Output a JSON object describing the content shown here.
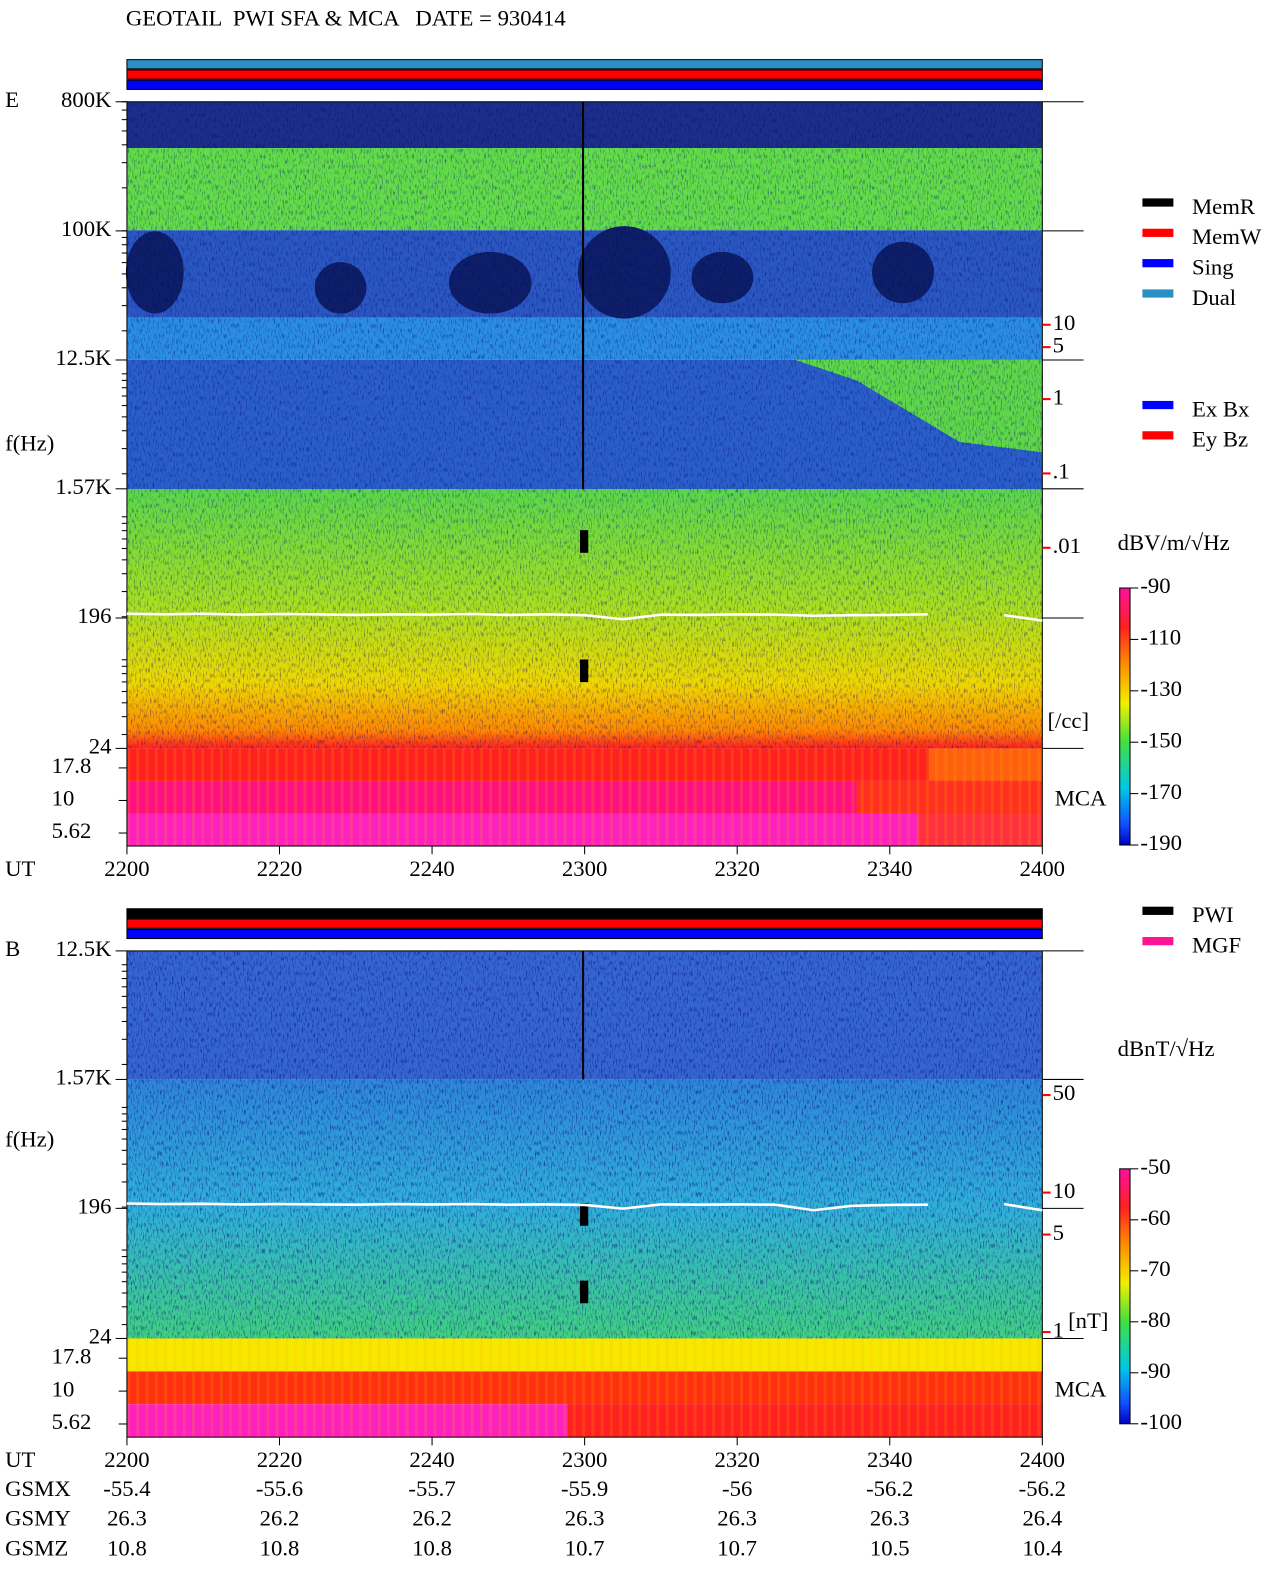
{
  "title": "GEOTAIL  PWI SFA & MCA   DATE = 930414",
  "chart_data": [
    {
      "type": "spectrogram",
      "panel_label": "E",
      "y_label": "f(Hz)",
      "x_label": "UT",
      "xlim": [
        1320,
        1440
      ],
      "xticks": [
        {
          "value": 1320,
          "label": "2200"
        },
        {
          "value": 1340,
          "label": "2220"
        },
        {
          "value": 1360,
          "label": "2240"
        },
        {
          "value": 1380,
          "label": "2300"
        },
        {
          "value": 1400,
          "label": "2320"
        },
        {
          "value": 1420,
          "label": "2340"
        },
        {
          "value": 1440,
          "label": "2400"
        }
      ],
      "log_y": true,
      "ylim": [
        24,
        800000
      ],
      "yticks": [
        {
          "value": 800000,
          "label": "800K"
        },
        {
          "value": 100000,
          "label": "100K"
        },
        {
          "value": 12500,
          "label": "12.5K"
        },
        {
          "value": 1570,
          "label": "1.57K"
        },
        196,
        24
      ],
      "mca_channels": [
        17.8,
        10,
        5.62
      ],
      "mca_label": "MCA",
      "y2_label": "[/cc]",
      "y2_color": "#ff0000",
      "y2lim": [
        2e-05,
        10000
      ],
      "y2ticks": [
        10,
        5,
        1,
        {
          "value": 0.1,
          "label": ".1"
        },
        {
          "value": 0.01,
          "label": ".01"
        }
      ],
      "colorbar": {
        "label": "dBV/m/√Hz",
        "lim": [
          -90,
          -190
        ],
        "ticks": [
          -90,
          -110,
          -130,
          -150,
          -170,
          -190
        ]
      },
      "legends": [
        [
          {
            "name": "MemR",
            "color": "#000000"
          },
          {
            "name": "MemW",
            "color": "#ff0000"
          },
          {
            "name": "Sing",
            "color": "#0000ff"
          },
          {
            "name": "Dual",
            "color": "#2a8fc4"
          }
        ],
        [
          {
            "name": "Ex Bx",
            "color": "#0000ff"
          },
          {
            "name": "Ey Bz",
            "color": "#ff0000"
          }
        ]
      ],
      "series": [
        {
          "color": "#ffffff",
          "x": [
            1320,
            1325,
            1330,
            1335,
            1340,
            1345,
            1350,
            1355,
            1360,
            1365,
            1370,
            1375,
            1380,
            1385,
            1390,
            1395,
            1400,
            1405,
            1410,
            1415,
            1420,
            1425,
            1430,
            1435,
            1440
          ],
          "values": [
            210,
            208,
            210,
            207,
            209,
            208,
            206,
            208,
            207,
            209,
            206,
            208,
            205,
            192,
            207,
            206,
            208,
            207,
            203,
            205,
            206,
            208,
            null,
            205,
            188
          ]
        }
      ]
    },
    {
      "type": "spectrogram",
      "panel_label": "B",
      "y_label": "f(Hz)",
      "x_label": "UT",
      "xlim": [
        1320,
        1440
      ],
      "xticks": [
        {
          "value": 1320,
          "label": "2200"
        },
        {
          "value": 1340,
          "label": "2220"
        },
        {
          "value": 1360,
          "label": "2240"
        },
        {
          "value": 1380,
          "label": "2300"
        },
        {
          "value": 1400,
          "label": "2320"
        },
        {
          "value": 1420,
          "label": "2340"
        },
        {
          "value": 1440,
          "label": "2400"
        }
      ],
      "log_y": true,
      "ylim": [
        24,
        12500
      ],
      "yticks": [
        {
          "value": 12500,
          "label": "12.5K"
        },
        {
          "value": 1570,
          "label": "1.57K"
        },
        196,
        24
      ],
      "mca_channels": [
        17.8,
        10,
        5.62
      ],
      "mca_label": "MCA",
      "y2_label": "[nT]",
      "y2_color": "#ff0000",
      "y2lim": [
        0.9,
        540
      ],
      "y2ticks": [
        50,
        10,
        5,
        1
      ],
      "colorbar": {
        "label": "dBnT/√Hz",
        "lim": [
          -50,
          -100
        ],
        "ticks": [
          -50,
          -60,
          -70,
          -80,
          -90,
          -100
        ]
      },
      "legends": [
        [
          {
            "name": "PWI",
            "color": "#000000"
          },
          {
            "name": "MGF",
            "color": "#ff1493"
          }
        ]
      ],
      "series": [
        {
          "color": "#ffffff",
          "x": [
            1320,
            1325,
            1330,
            1335,
            1340,
            1345,
            1350,
            1355,
            1360,
            1365,
            1370,
            1375,
            1380,
            1385,
            1390,
            1395,
            1400,
            1405,
            1410,
            1415,
            1420,
            1425,
            1430,
            1435,
            1440
          ],
          "values": [
            212,
            210,
            211,
            209,
            210,
            209,
            208,
            210,
            209,
            210,
            208,
            209,
            207,
            195,
            209,
            208,
            209,
            208,
            190,
            204,
            207,
            208,
            null,
            210,
            190
          ]
        }
      ]
    }
  ],
  "orbit": {
    "rows": [
      {
        "label": "GSMX",
        "values": [
          -55.4,
          -55.6,
          -55.7,
          -55.9,
          -56.0,
          -56.2,
          -56.2
        ]
      },
      {
        "label": "GSMY",
        "values": [
          26.3,
          26.2,
          26.2,
          26.3,
          26.3,
          26.3,
          26.4
        ]
      },
      {
        "label": "GSMZ",
        "values": [
          10.8,
          10.8,
          10.8,
          10.7,
          10.7,
          10.5,
          10.4
        ]
      }
    ]
  }
}
